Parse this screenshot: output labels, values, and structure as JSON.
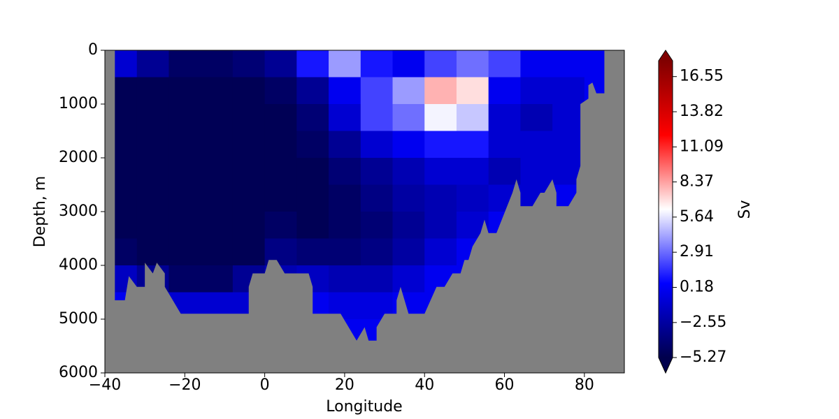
{
  "chart_data": {
    "type": "contour",
    "colormap": "seismic",
    "xlabel": "Longitude",
    "ylabel": "Depth, m",
    "colorbar_label": "Sv",
    "xlim": [
      -40,
      90
    ],
    "xticks": [
      {
        "value": -40,
        "label": "−40"
      },
      {
        "value": -20,
        "label": "−20"
      },
      0,
      20,
      40,
      60,
      80
    ],
    "ylim": [
      6000,
      0
    ],
    "yticks": [
      0,
      1000,
      2000,
      3000,
      4000,
      5000,
      6000
    ],
    "clim": [
      -5.27,
      17.78
    ],
    "cticks": [
      {
        "value": -5.27,
        "label": "−5.27"
      },
      {
        "value": -2.55,
        "label": "−2.55"
      },
      0.18,
      2.91,
      5.64,
      8.37,
      11.09,
      13.82,
      16.55
    ],
    "x_edges": [
      -40,
      -32,
      -24,
      -16,
      -8,
      0,
      8,
      16,
      24,
      32,
      40,
      48,
      56,
      64,
      72,
      80,
      88
    ],
    "depth_edges": [
      0,
      500,
      1000,
      1500,
      2000,
      2500,
      3000,
      3500,
      4000,
      4500,
      5000,
      5500
    ],
    "z": [
      [
        -1,
        -3,
        -4.5,
        -4.5,
        -4,
        -3,
        1,
        4,
        1,
        0,
        2,
        3,
        2,
        0,
        0,
        0
      ],
      [
        -5,
        -5,
        -5,
        -5,
        -5,
        -4.5,
        -3,
        0,
        2,
        4,
        8,
        7,
        0,
        -1,
        -1,
        0
      ],
      [
        -5,
        -5,
        -5,
        -5,
        -5,
        -5,
        -4,
        -1,
        2,
        3,
        6,
        5,
        -1,
        -2,
        -1,
        0
      ],
      [
        -5,
        -5,
        -5,
        -5,
        -5,
        -5,
        -4.5,
        -3,
        -1,
        0,
        1,
        1,
        -1,
        -1,
        -1,
        0
      ],
      [
        -5,
        -5,
        -5,
        -5,
        -5,
        -5,
        -5,
        -4,
        -3,
        -2,
        -1,
        -1,
        -2,
        -1,
        -1,
        0
      ],
      [
        -5,
        -5,
        -5,
        -5,
        -5,
        -5,
        -5,
        -4.5,
        -3.5,
        -2.5,
        -2,
        -1.5,
        -1,
        -1,
        0,
        0
      ],
      [
        -5,
        -5,
        -5,
        -5,
        -5,
        -4.5,
        -5,
        -4.5,
        -4,
        -3,
        -2,
        -1,
        0,
        0,
        0,
        0
      ],
      [
        -4.5,
        -5,
        -5,
        -5,
        -5,
        -3.5,
        -4,
        -4,
        -3.5,
        -2.5,
        -1,
        0,
        0,
        0,
        0,
        0
      ],
      [
        -1.5,
        -3,
        -4.5,
        -4.5,
        -3,
        -2,
        -1.5,
        -2,
        -2,
        -1,
        0,
        0,
        0,
        0,
        0,
        0
      ],
      [
        0,
        0,
        -1,
        -1,
        -1,
        0,
        0,
        -0.5,
        -0.5,
        0,
        0,
        0,
        0,
        0,
        0,
        0
      ],
      [
        0,
        0,
        0,
        0,
        0,
        0,
        0,
        0,
        0,
        0,
        0,
        0,
        0,
        0,
        0,
        0
      ]
    ],
    "bottom": {
      "color": "#808080",
      "x": [
        -40,
        -37.5,
        -37.5,
        -35,
        -34,
        -32,
        -30,
        -30,
        -28,
        -27,
        -25,
        -25,
        -23,
        -21,
        -4,
        -4,
        -3,
        0,
        1,
        3,
        5,
        11,
        12,
        12,
        19,
        21,
        23,
        25,
        26,
        28,
        28,
        30,
        33,
        33,
        34,
        36,
        40,
        43,
        45,
        47,
        49,
        50,
        51,
        52,
        54,
        55,
        56,
        58,
        62,
        63,
        64,
        64,
        67,
        69,
        70,
        72,
        73,
        73,
        76,
        78,
        78,
        79,
        79,
        81,
        81,
        82,
        83,
        85,
        85,
        90
      ],
      "depth": [
        0,
        0,
        4650,
        4650,
        4200,
        4400,
        4400,
        3950,
        4150,
        3950,
        4150,
        4400,
        4650,
        4900,
        4900,
        4400,
        4150,
        4150,
        3900,
        3900,
        4150,
        4150,
        4400,
        4900,
        4900,
        5150,
        5400,
        5150,
        5400,
        5400,
        5150,
        4900,
        4900,
        4650,
        4400,
        4900,
        4900,
        4400,
        4400,
        4150,
        4150,
        3900,
        3900,
        3650,
        3400,
        3150,
        3400,
        3400,
        2650,
        2400,
        2650,
        2900,
        2900,
        2650,
        2650,
        2400,
        2650,
        2900,
        2900,
        2650,
        2400,
        2150,
        1000,
        900,
        650,
        600,
        800,
        800,
        0,
        0
      ]
    }
  }
}
